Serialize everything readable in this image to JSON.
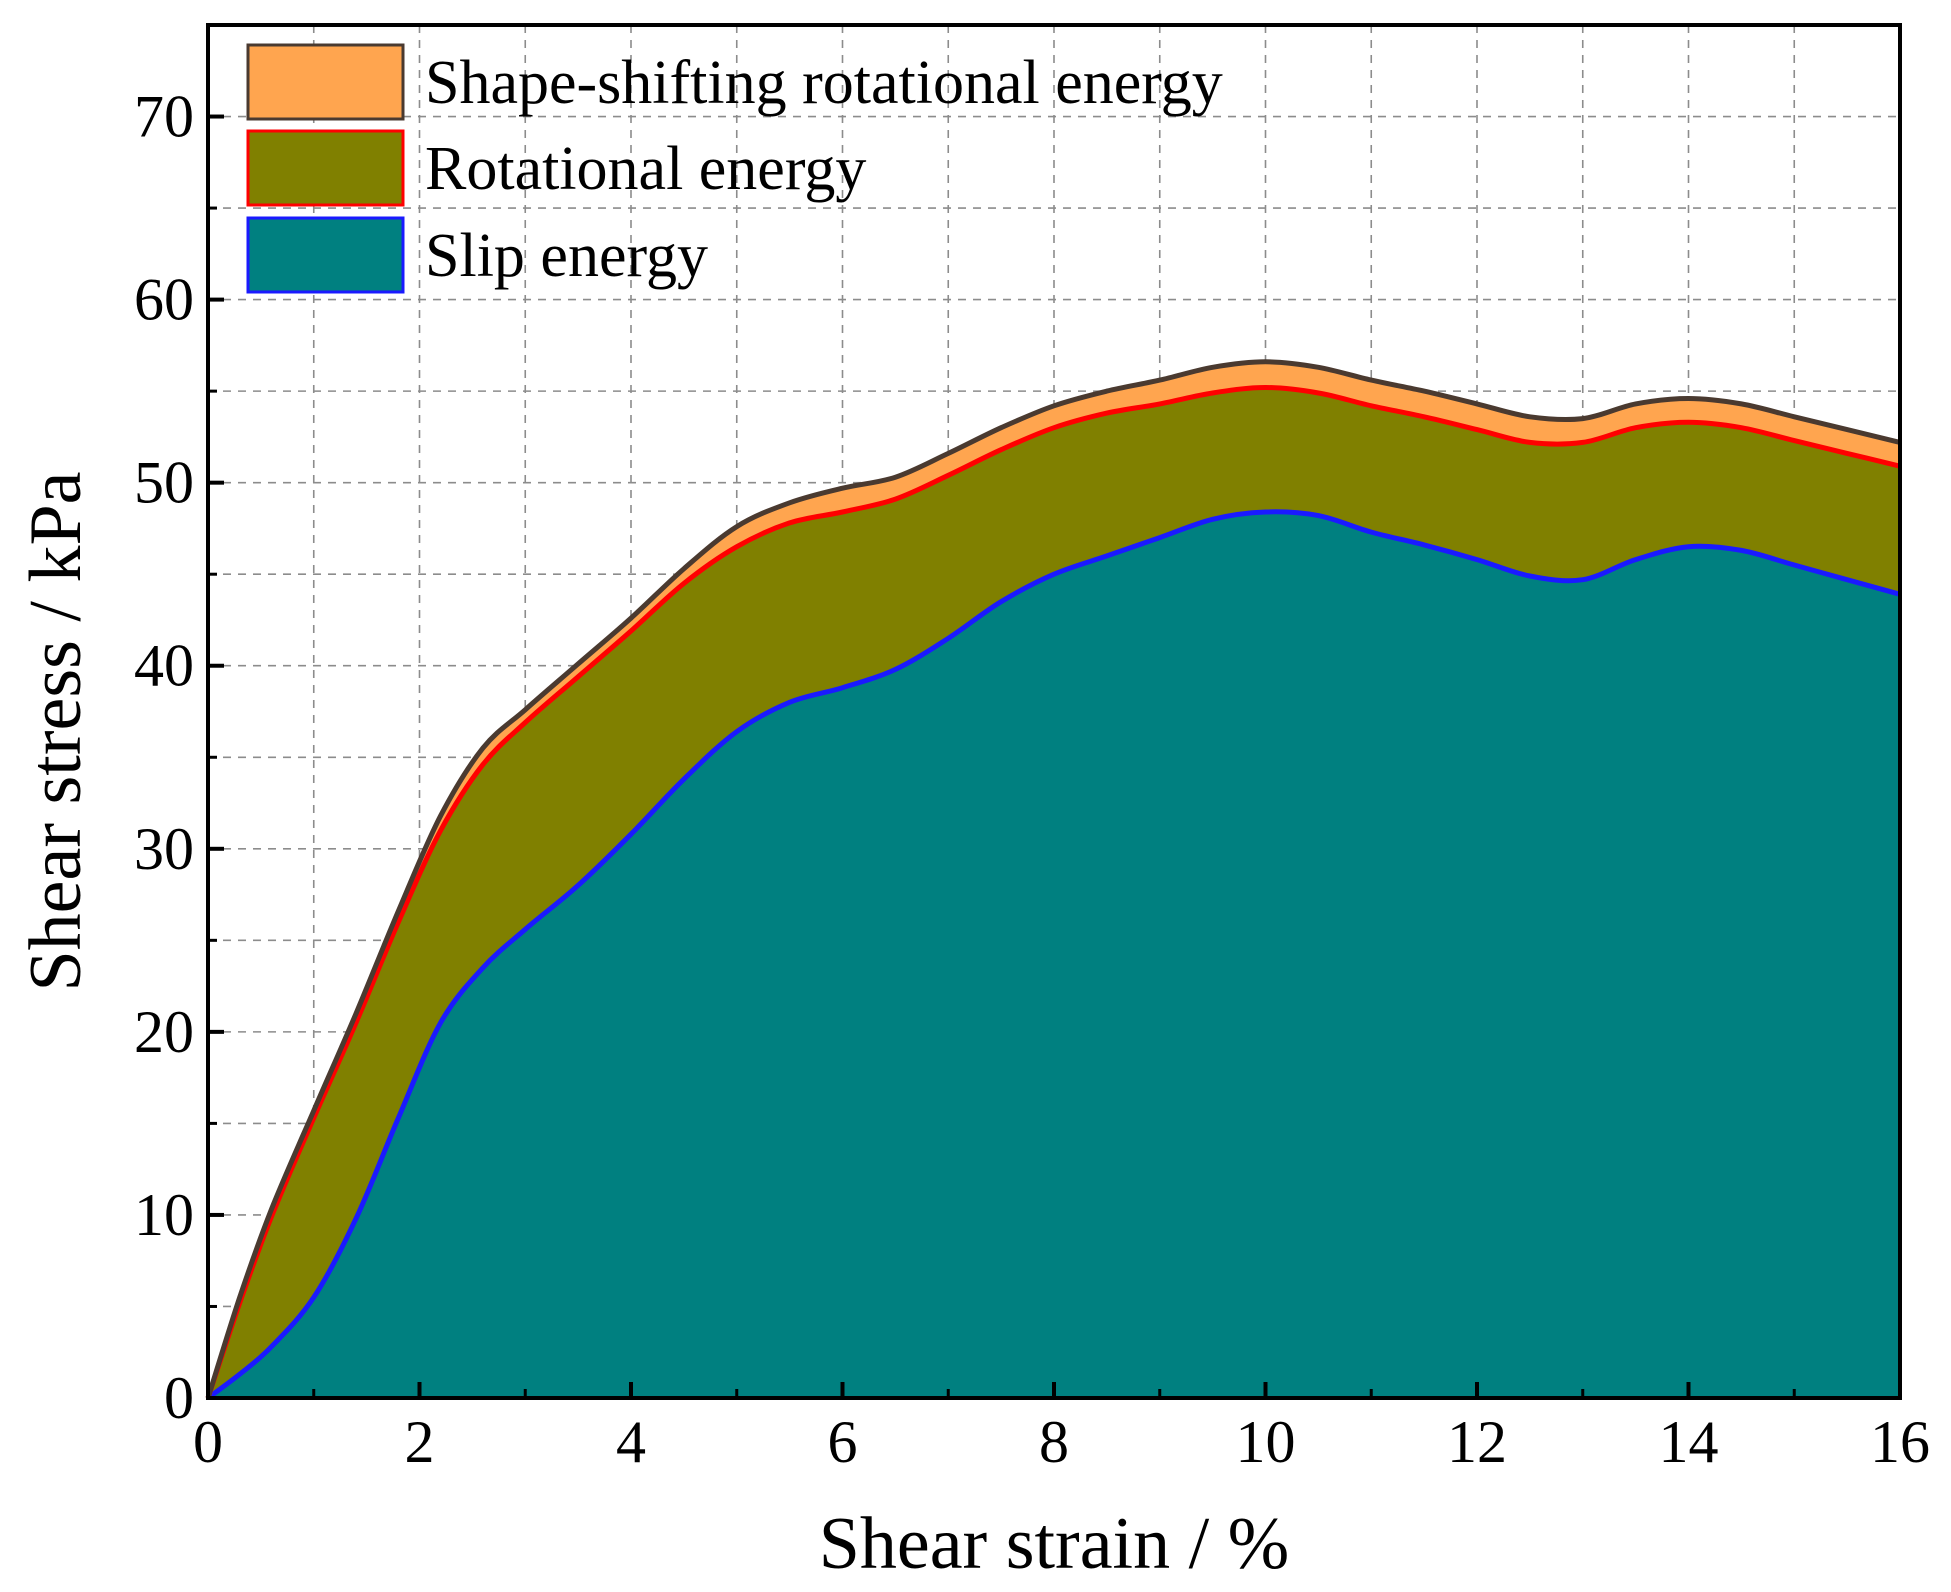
{
  "chart_data": {
    "type": "area",
    "stacked": true,
    "title": "",
    "xlabel": "Shear strain / %",
    "ylabel": "Shear stress / kPa",
    "xlim": [
      0,
      16
    ],
    "ylim": [
      0,
      75
    ],
    "xticks": [
      0,
      2,
      4,
      6,
      8,
      10,
      12,
      14,
      16
    ],
    "yticks": [
      0,
      10,
      20,
      30,
      40,
      50,
      60,
      70
    ],
    "grid": true,
    "legend_position": "top-left",
    "x": [
      0,
      0.3,
      0.6,
      1,
      1.4,
      1.8,
      2.2,
      2.6,
      3,
      3.5,
      4,
      4.5,
      5,
      5.5,
      6,
      6.5,
      7,
      7.5,
      8,
      8.5,
      9,
      9.5,
      10,
      10.5,
      11,
      11.5,
      12,
      12.5,
      13,
      13.5,
      14,
      14.5,
      15,
      15.5,
      16
    ],
    "series": [
      {
        "name": "Slip energy",
        "fill": "#008080",
        "line": "#1a1aff",
        "totals": [
          0,
          1.3,
          2.8,
          5.5,
          9.8,
          15.3,
          20.5,
          23.5,
          25.6,
          28.0,
          30.8,
          33.8,
          36.4,
          38.0,
          38.8,
          39.8,
          41.5,
          43.5,
          45.0,
          46.0,
          47.0,
          48.0,
          48.4,
          48.2,
          47.3,
          46.6,
          45.8,
          44.9,
          44.7,
          45.8,
          46.5,
          46.3,
          45.5,
          44.7,
          43.9
        ]
      },
      {
        "name": "Rotational energy",
        "fill": "#808000",
        "line": "#ff0000",
        "totals": [
          0,
          5.2,
          9.9,
          15.3,
          20.5,
          26.0,
          31.0,
          34.6,
          36.9,
          39.4,
          41.9,
          44.5,
          46.5,
          47.8,
          48.4,
          49.1,
          50.4,
          51.8,
          53.0,
          53.8,
          54.3,
          54.9,
          55.2,
          54.9,
          54.2,
          53.6,
          52.9,
          52.2,
          52.2,
          53.0,
          53.3,
          53.0,
          52.3,
          51.6,
          50.9
        ]
      },
      {
        "name": "Shape-shifting rotational energy",
        "fill": "#ffa54f",
        "line": "#4a3a30",
        "totals": [
          0,
          5.5,
          10.3,
          15.7,
          21.0,
          26.6,
          31.8,
          35.5,
          37.6,
          40.1,
          42.6,
          45.3,
          47.6,
          48.9,
          49.7,
          50.3,
          51.6,
          53.0,
          54.2,
          55.0,
          55.6,
          56.3,
          56.6,
          56.3,
          55.6,
          55.0,
          54.3,
          53.6,
          53.5,
          54.3,
          54.6,
          54.3,
          53.6,
          52.9,
          52.2
        ]
      }
    ],
    "legend_order": [
      "Shape-shifting rotational energy",
      "Rotational energy",
      "Slip energy"
    ]
  }
}
